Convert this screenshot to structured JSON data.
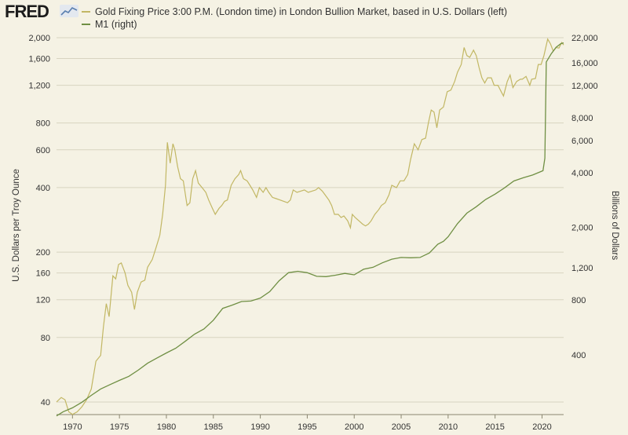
{
  "brand": {
    "logo_text": "FRED"
  },
  "colors": {
    "gold": "#c2b764",
    "m1": "#6f8f43",
    "grid": "#d8d4c0",
    "background": "#f5f2e4"
  },
  "chart_data": {
    "type": "line",
    "title": "",
    "legend": [
      {
        "label": "Gold Fixing Price 3:00 P.M. (London time) in London Bullion Market, based in U.S. Dollars (left)",
        "color": "#c2b764"
      },
      {
        "label": "M1 (right)",
        "color": "#6f8f43"
      }
    ],
    "x_axis": {
      "label": "",
      "range": [
        1968.3,
        2022.3
      ],
      "ticks": [
        "1970",
        "1975",
        "1980",
        "1985",
        "1990",
        "1995",
        "2000",
        "2005",
        "2010",
        "2015",
        "2020"
      ]
    },
    "y_axis_left": {
      "label": "U.S. Dollars per Troy Ounce",
      "scale": "log",
      "range": [
        35,
        2000
      ],
      "ticks": [
        "40",
        "80",
        "120",
        "160",
        "200",
        "400",
        "600",
        "800",
        "1,200",
        "1,600",
        "2,000"
      ]
    },
    "y_axis_right": {
      "label": "Billions of Dollars",
      "scale": "log",
      "range": [
        180,
        22000
      ],
      "ticks": [
        "400",
        "800",
        "1,200",
        "2,000",
        "4,000",
        "6,000",
        "8,000",
        "12,000",
        "16,000",
        "22,000"
      ]
    },
    "series": [
      {
        "name": "Gold Fixing Price 3:00 P.M. (London time) in London Bullion Market, based in U.S. Dollars (left)",
        "axis": "left",
        "points": [
          [
            1968.3,
            40
          ],
          [
            1968.8,
            42
          ],
          [
            1969.2,
            41
          ],
          [
            1969.6,
            36
          ],
          [
            1970.0,
            35
          ],
          [
            1970.5,
            36
          ],
          [
            1971.0,
            38
          ],
          [
            1971.5,
            41
          ],
          [
            1972.0,
            46
          ],
          [
            1972.5,
            62
          ],
          [
            1973.0,
            66
          ],
          [
            1973.3,
            90
          ],
          [
            1973.6,
            115
          ],
          [
            1973.9,
            100
          ],
          [
            1974.3,
            155
          ],
          [
            1974.6,
            150
          ],
          [
            1974.9,
            175
          ],
          [
            1975.2,
            178
          ],
          [
            1975.6,
            160
          ],
          [
            1975.9,
            140
          ],
          [
            1976.3,
            130
          ],
          [
            1976.6,
            108
          ],
          [
            1976.9,
            130
          ],
          [
            1977.3,
            145
          ],
          [
            1977.7,
            148
          ],
          [
            1978.0,
            170
          ],
          [
            1978.5,
            185
          ],
          [
            1978.9,
            210
          ],
          [
            1979.3,
            240
          ],
          [
            1979.6,
            300
          ],
          [
            1979.9,
            410
          ],
          [
            1980.1,
            650
          ],
          [
            1980.4,
            520
          ],
          [
            1980.7,
            640
          ],
          [
            1980.9,
            600
          ],
          [
            1981.2,
            500
          ],
          [
            1981.5,
            440
          ],
          [
            1981.8,
            430
          ],
          [
            1982.2,
            330
          ],
          [
            1982.5,
            340
          ],
          [
            1982.8,
            440
          ],
          [
            1983.1,
            480
          ],
          [
            1983.4,
            420
          ],
          [
            1983.8,
            400
          ],
          [
            1984.2,
            380
          ],
          [
            1984.5,
            350
          ],
          [
            1984.9,
            320
          ],
          [
            1985.2,
            300
          ],
          [
            1985.6,
            320
          ],
          [
            1985.9,
            330
          ],
          [
            1986.2,
            345
          ],
          [
            1986.5,
            350
          ],
          [
            1986.9,
            410
          ],
          [
            1987.3,
            440
          ],
          [
            1987.7,
            460
          ],
          [
            1987.9,
            480
          ],
          [
            1988.2,
            440
          ],
          [
            1988.6,
            430
          ],
          [
            1988.9,
            410
          ],
          [
            1989.2,
            390
          ],
          [
            1989.6,
            360
          ],
          [
            1989.9,
            400
          ],
          [
            1990.3,
            380
          ],
          [
            1990.6,
            400
          ],
          [
            1990.9,
            380
          ],
          [
            1991.3,
            360
          ],
          [
            1991.7,
            355
          ],
          [
            1992.1,
            350
          ],
          [
            1992.5,
            345
          ],
          [
            1992.9,
            340
          ],
          [
            1993.2,
            350
          ],
          [
            1993.5,
            390
          ],
          [
            1993.9,
            380
          ],
          [
            1994.3,
            385
          ],
          [
            1994.7,
            390
          ],
          [
            1995.1,
            380
          ],
          [
            1995.5,
            385
          ],
          [
            1995.9,
            390
          ],
          [
            1996.2,
            400
          ],
          [
            1996.6,
            385
          ],
          [
            1996.9,
            370
          ],
          [
            1997.3,
            350
          ],
          [
            1997.6,
            330
          ],
          [
            1997.9,
            300
          ],
          [
            1998.3,
            300
          ],
          [
            1998.6,
            290
          ],
          [
            1998.9,
            295
          ],
          [
            1999.3,
            280
          ],
          [
            1999.6,
            260
          ],
          [
            1999.8,
            300
          ],
          [
            2000.1,
            290
          ],
          [
            2000.5,
            280
          ],
          [
            2000.9,
            270
          ],
          [
            2001.2,
            265
          ],
          [
            2001.5,
            270
          ],
          [
            2001.8,
            280
          ],
          [
            2002.2,
            300
          ],
          [
            2002.6,
            315
          ],
          [
            2002.9,
            330
          ],
          [
            2003.3,
            340
          ],
          [
            2003.7,
            370
          ],
          [
            2004.0,
            410
          ],
          [
            2004.5,
            400
          ],
          [
            2004.9,
            430
          ],
          [
            2005.3,
            430
          ],
          [
            2005.7,
            460
          ],
          [
            2006.0,
            540
          ],
          [
            2006.4,
            640
          ],
          [
            2006.8,
            600
          ],
          [
            2007.2,
            670
          ],
          [
            2007.6,
            680
          ],
          [
            2007.9,
            800
          ],
          [
            2008.2,
            920
          ],
          [
            2008.5,
            900
          ],
          [
            2008.8,
            760
          ],
          [
            2009.1,
            920
          ],
          [
            2009.5,
            950
          ],
          [
            2009.9,
            1120
          ],
          [
            2010.3,
            1140
          ],
          [
            2010.7,
            1250
          ],
          [
            2011.0,
            1380
          ],
          [
            2011.4,
            1500
          ],
          [
            2011.7,
            1800
          ],
          [
            2012.0,
            1650
          ],
          [
            2012.3,
            1620
          ],
          [
            2012.7,
            1750
          ],
          [
            2013.0,
            1650
          ],
          [
            2013.3,
            1450
          ],
          [
            2013.6,
            1300
          ],
          [
            2013.9,
            1230
          ],
          [
            2014.2,
            1300
          ],
          [
            2014.6,
            1300
          ],
          [
            2014.9,
            1200
          ],
          [
            2015.3,
            1200
          ],
          [
            2015.7,
            1110
          ],
          [
            2015.9,
            1070
          ],
          [
            2016.3,
            1250
          ],
          [
            2016.6,
            1340
          ],
          [
            2016.9,
            1170
          ],
          [
            2017.3,
            1250
          ],
          [
            2017.7,
            1280
          ],
          [
            2017.9,
            1280
          ],
          [
            2018.3,
            1320
          ],
          [
            2018.7,
            1200
          ],
          [
            2018.9,
            1280
          ],
          [
            2019.3,
            1290
          ],
          [
            2019.6,
            1500
          ],
          [
            2019.9,
            1500
          ],
          [
            2020.2,
            1650
          ],
          [
            2020.6,
            1970
          ],
          [
            2020.9,
            1870
          ],
          [
            2021.2,
            1730
          ],
          [
            2021.5,
            1800
          ],
          [
            2021.8,
            1790
          ],
          [
            2022.1,
            1900
          ],
          [
            2022.3,
            1850
          ]
        ]
      },
      {
        "name": "M1 (right)",
        "axis": "right",
        "points": [
          [
            1968.3,
            185
          ],
          [
            1969.0,
            195
          ],
          [
            1970.0,
            205
          ],
          [
            1971.0,
            220
          ],
          [
            1972.0,
            240
          ],
          [
            1973.0,
            260
          ],
          [
            1974.0,
            275
          ],
          [
            1975.0,
            290
          ],
          [
            1976.0,
            305
          ],
          [
            1977.0,
            330
          ],
          [
            1978.0,
            360
          ],
          [
            1979.0,
            385
          ],
          [
            1980.0,
            410
          ],
          [
            1981.0,
            435
          ],
          [
            1982.0,
            475
          ],
          [
            1983.0,
            520
          ],
          [
            1984.0,
            555
          ],
          [
            1985.0,
            620
          ],
          [
            1986.0,
            720
          ],
          [
            1987.0,
            750
          ],
          [
            1988.0,
            785
          ],
          [
            1989.0,
            790
          ],
          [
            1990.0,
            820
          ],
          [
            1991.0,
            890
          ],
          [
            1992.0,
            1020
          ],
          [
            1993.0,
            1130
          ],
          [
            1994.0,
            1150
          ],
          [
            1995.0,
            1130
          ],
          [
            1996.0,
            1080
          ],
          [
            1997.0,
            1075
          ],
          [
            1998.0,
            1095
          ],
          [
            1999.0,
            1120
          ],
          [
            2000.0,
            1100
          ],
          [
            2001.0,
            1180
          ],
          [
            2002.0,
            1210
          ],
          [
            2003.0,
            1280
          ],
          [
            2004.0,
            1340
          ],
          [
            2005.0,
            1370
          ],
          [
            2006.0,
            1365
          ],
          [
            2007.0,
            1370
          ],
          [
            2008.0,
            1450
          ],
          [
            2008.9,
            1620
          ],
          [
            2009.5,
            1680
          ],
          [
            2010.0,
            1780
          ],
          [
            2011.0,
            2100
          ],
          [
            2012.0,
            2400
          ],
          [
            2013.0,
            2600
          ],
          [
            2014.0,
            2850
          ],
          [
            2015.0,
            3050
          ],
          [
            2016.0,
            3300
          ],
          [
            2017.0,
            3600
          ],
          [
            2018.0,
            3750
          ],
          [
            2019.0,
            3880
          ],
          [
            2020.1,
            4100
          ],
          [
            2020.3,
            4800
          ],
          [
            2020.45,
            16200
          ],
          [
            2021.0,
            18000
          ],
          [
            2021.5,
            19500
          ],
          [
            2022.0,
            20400
          ],
          [
            2022.3,
            20600
          ]
        ]
      }
    ]
  }
}
